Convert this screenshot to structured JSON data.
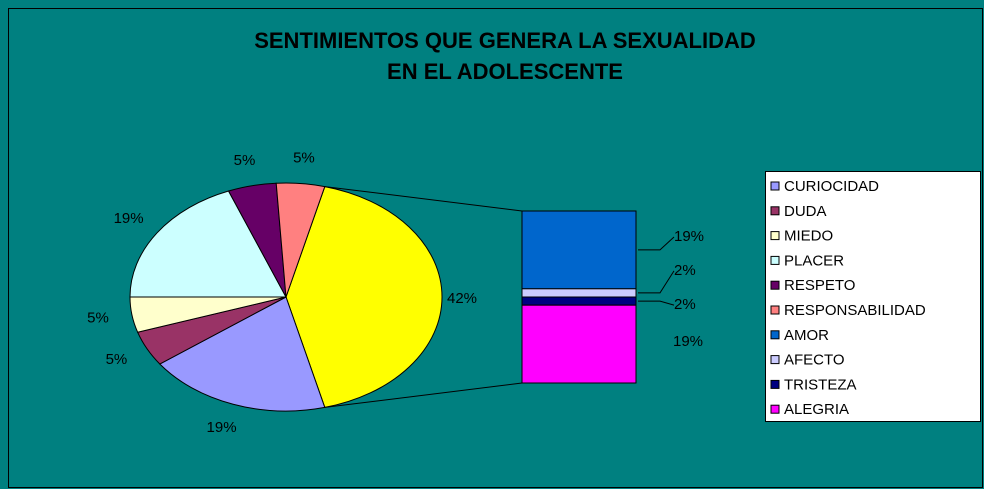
{
  "chart_data": {
    "type": "bar-of-pie",
    "title": [
      "SENTIMIENTOS QUE GENERA LA SEXUALIDAD",
      "EN EL ADOLESCENTE"
    ],
    "categories": [
      "CURIOCIDAD",
      "DUDA",
      "MIEDO",
      "PLACER",
      "RESPETO",
      "RESPONSABILIDAD",
      "AMOR",
      "AFECTO",
      "TRISTEZA",
      "ALEGRIA"
    ],
    "values": [
      19,
      5,
      5,
      19,
      5,
      5,
      19,
      2,
      2,
      19
    ],
    "value_labels": [
      "19%",
      "5%",
      "5%",
      "19%",
      "5%",
      "5%",
      "19%",
      "2%",
      "2%",
      "19%"
    ],
    "colors": [
      "#9999ff",
      "#993366",
      "#ffffcc",
      "#ccffff",
      "#660066",
      "#ff8080",
      "#0066cc",
      "#ccccff",
      "#000080",
      "#ff00ff"
    ],
    "secondary_count": 4,
    "secondary_total": 42,
    "secondary_label": "42%",
    "secondary_color": "#ffff00",
    "background": "#008080",
    "legend": "right"
  }
}
